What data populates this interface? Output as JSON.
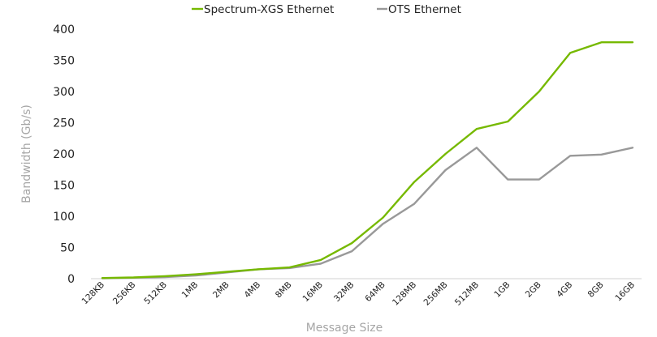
{
  "chart_data": {
    "type": "line",
    "xlabel": "Message Size",
    "ylabel": "Bandwidth (Gb/s)",
    "ylim": [
      0,
      400
    ],
    "yticks": [
      "0",
      "50",
      "100",
      "150",
      "200",
      "250",
      "300",
      "350",
      "400"
    ],
    "categories": [
      "128KB",
      "256KB",
      "512KB",
      "1MB",
      "2MB",
      "4MB",
      "8MB",
      "16MB",
      "32MB",
      "64MB",
      "128MB",
      "256MB",
      "512MB",
      "1GB",
      "2GB",
      "4GB",
      "8GB",
      "16GB"
    ],
    "grid": false,
    "legend_position": "top-center",
    "series": [
      {
        "name": "Spectrum-XGS  Ethernet",
        "color": "#76b900",
        "values": [
          1,
          2,
          4,
          7,
          11,
          15,
          18,
          30,
          57,
          98,
          155,
          200,
          240,
          252,
          300,
          362,
          379,
          379
        ]
      },
      {
        "name": "OTS Ethernet",
        "color": "#999999",
        "values": [
          0.5,
          1.5,
          2.5,
          5,
          10,
          15,
          17,
          24,
          44,
          88,
          120,
          174,
          210,
          159,
          159,
          197,
          199,
          210
        ]
      }
    ]
  }
}
